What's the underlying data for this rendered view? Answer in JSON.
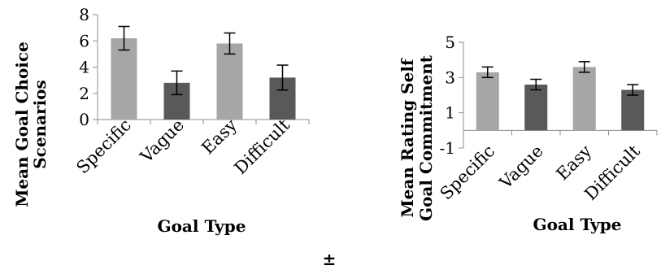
{
  "chart_data": [
    {
      "type": "bar",
      "categories": [
        "Specific",
        "Vague",
        "Easy",
        "Difficult"
      ],
      "values": [
        6.2,
        2.8,
        5.8,
        3.2
      ],
      "errors": [
        0.9,
        0.9,
        0.8,
        0.95
      ],
      "bar_colors": [
        "#a6a6a6",
        "#595959",
        "#a6a6a6",
        "#595959"
      ],
      "ylabel_lines": [
        "Mean Goal Choice",
        "Scenarios"
      ],
      "xlabel": "Goal Type",
      "ylim": [
        0,
        8
      ],
      "yticks": [
        0,
        2,
        4,
        6,
        8
      ],
      "grid": false,
      "legend": false
    },
    {
      "type": "bar",
      "categories": [
        "Specific",
        "Vague",
        "Easy",
        "Difficult"
      ],
      "values": [
        3.3,
        2.6,
        3.6,
        2.3
      ],
      "errors": [
        0.3,
        0.3,
        0.3,
        0.3
      ],
      "bar_colors": [
        "#a6a6a6",
        "#595959",
        "#a6a6a6",
        "#595959"
      ],
      "ylabel_lines": [
        "Mean Rating Self",
        "Goal Commitment"
      ],
      "xlabel": "Goal Type",
      "ylim": [
        -1,
        5
      ],
      "yticks": [
        -1,
        1,
        3,
        5
      ],
      "grid": false,
      "legend": false
    }
  ],
  "footer_symbol": "±"
}
